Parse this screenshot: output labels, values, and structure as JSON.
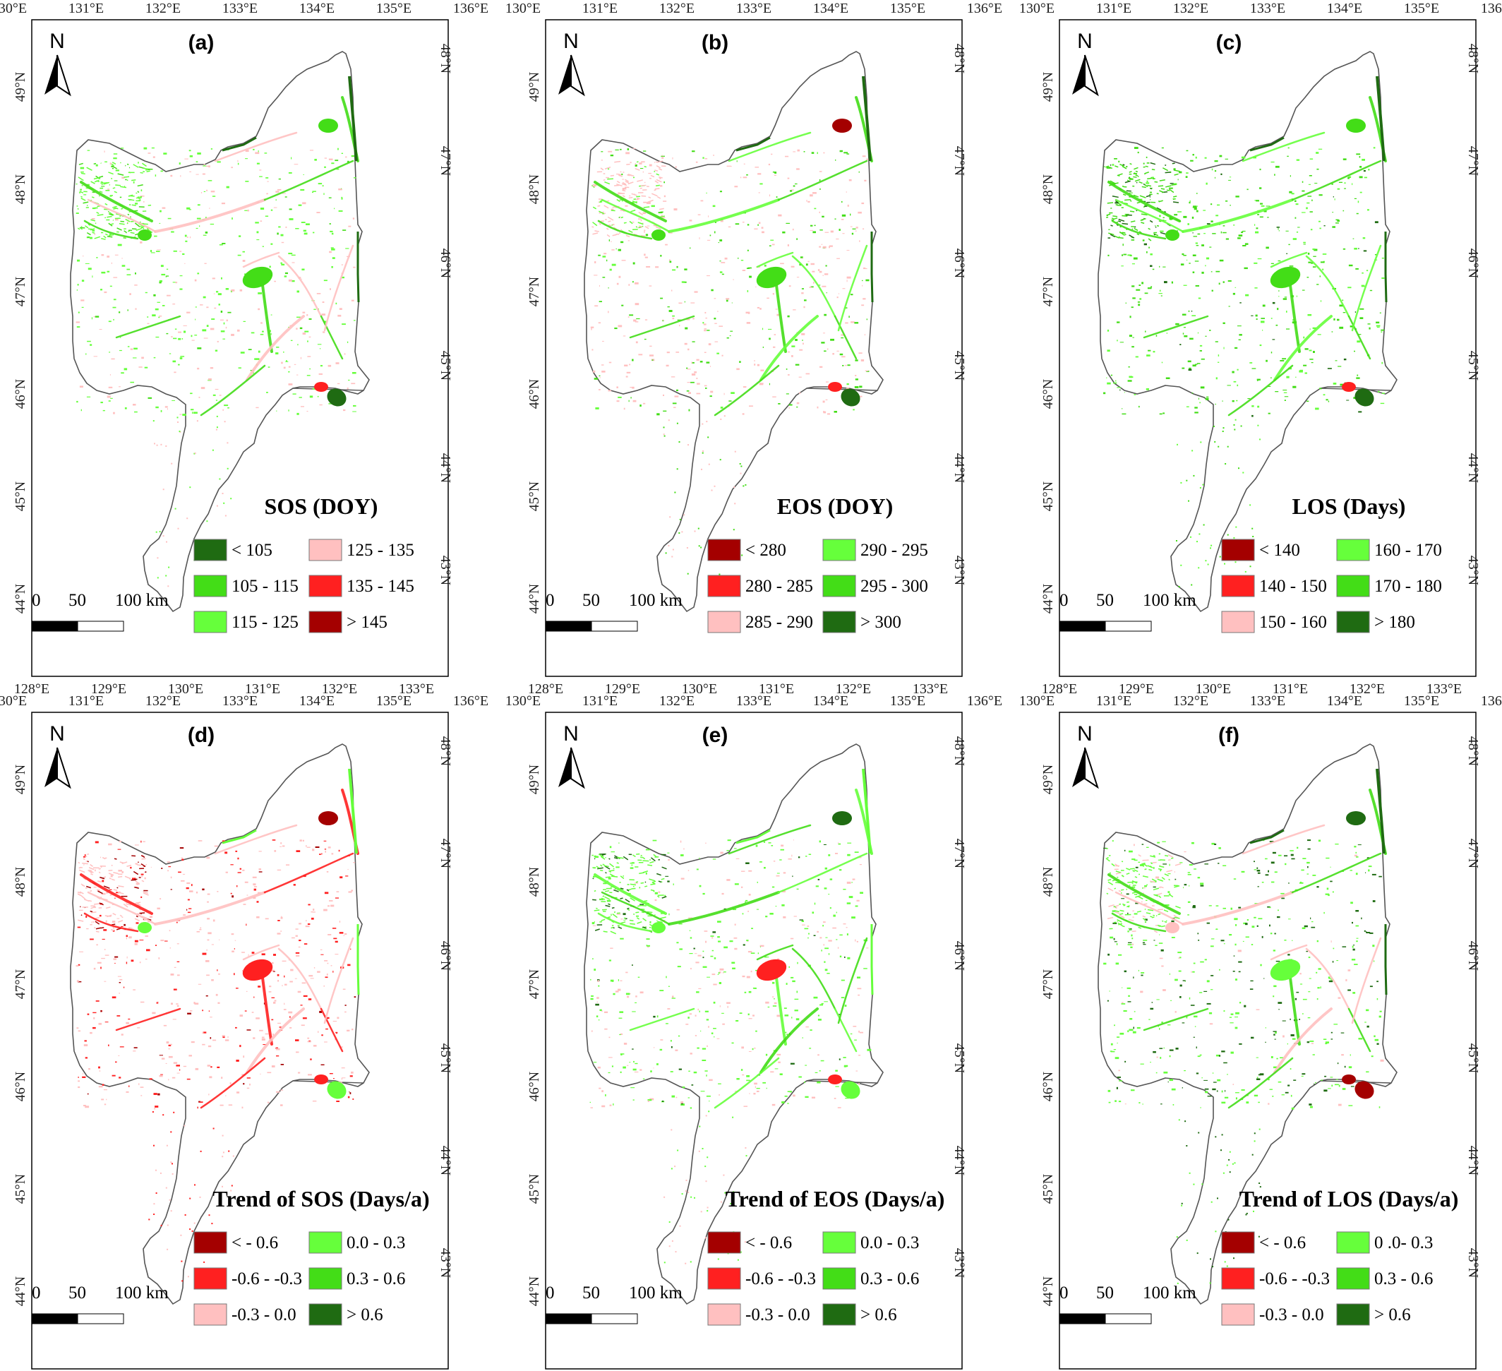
{
  "panels": [
    {
      "id": "a",
      "label": "(a)",
      "legend_title": "SOS (DOY)",
      "variable": "SOS",
      "legend": [
        {
          "label": "< 105",
          "color": "#1f6b12"
        },
        {
          "label": "105 - 115",
          "color": "#43dd17"
        },
        {
          "label": "115 - 125",
          "color": "#66ff3b"
        },
        {
          "label": "125 - 135",
          "color": "#ffc0c0"
        },
        {
          "label": "135 - 145",
          "color": "#ff2020"
        },
        {
          "label": "> 145",
          "color": "#a40000"
        }
      ]
    },
    {
      "id": "b",
      "label": "(b)",
      "legend_title": "EOS (DOY)",
      "variable": "EOS",
      "legend": [
        {
          "label": "< 280",
          "color": "#a40000"
        },
        {
          "label": "280 - 285",
          "color": "#ff2020"
        },
        {
          "label": "285 - 290",
          "color": "#ffc0c0"
        },
        {
          "label": "290 - 295",
          "color": "#66ff3b"
        },
        {
          "label": "295 - 300",
          "color": "#43dd17"
        },
        {
          "label": "> 300",
          "color": "#1f6b12"
        }
      ]
    },
    {
      "id": "c",
      "label": "(c)",
      "legend_title": "LOS (Days)",
      "variable": "LOS",
      "legend": [
        {
          "label": "< 140",
          "color": "#a40000"
        },
        {
          "label": "140 - 150",
          "color": "#ff2020"
        },
        {
          "label": "150 - 160",
          "color": "#ffc0c0"
        },
        {
          "label": "160 - 170",
          "color": "#66ff3b"
        },
        {
          "label": "170 - 180",
          "color": "#43dd17"
        },
        {
          "label": "> 180",
          "color": "#1f6b12"
        }
      ]
    },
    {
      "id": "d",
      "label": "(d)",
      "legend_title": "Trend of SOS (Days/a)",
      "variable": "SOS trend",
      "legend": [
        {
          "label": "< - 0.6",
          "color": "#a40000"
        },
        {
          "label": "-0.6 - -0.3",
          "color": "#ff2020"
        },
        {
          "label": "-0.3 - 0.0",
          "color": "#ffc0c0"
        },
        {
          "label": "0.0 - 0.3",
          "color": "#66ff3b"
        },
        {
          "label": "0.3 - 0.6",
          "color": "#43dd17"
        },
        {
          "label": "> 0.6",
          "color": "#1f6b12"
        }
      ]
    },
    {
      "id": "e",
      "label": "(e)",
      "legend_title": "Trend of EOS (Days/a)",
      "variable": "EOS trend",
      "legend": [
        {
          "label": "< - 0.6",
          "color": "#a40000"
        },
        {
          "label": "-0.6 - -0.3",
          "color": "#ff2020"
        },
        {
          "label": "-0.3 - 0.0",
          "color": "#ffc0c0"
        },
        {
          "label": "0.0 - 0.3",
          "color": "#66ff3b"
        },
        {
          "label": "0.3 - 0.6",
          "color": "#43dd17"
        },
        {
          "label": "> 0.6",
          "color": "#1f6b12"
        }
      ]
    },
    {
      "id": "f",
      "label": "(f)",
      "legend_title": "Trend of LOS (Days/a)",
      "variable": "LOS trend",
      "legend": [
        {
          "label": "< - 0.6",
          "color": "#a40000"
        },
        {
          "label": "-0.6 - -0.3",
          "color": "#ff2020"
        },
        {
          "label": "-0.3 - 0.0",
          "color": "#ffc0c0"
        },
        {
          "label": "0 .0- 0.3",
          "color": "#66ff3b"
        },
        {
          "label": "0.3 - 0.6",
          "color": "#43dd17"
        },
        {
          "label": "> 0.6",
          "color": "#1f6b12"
        }
      ]
    }
  ],
  "axes": {
    "top_ticks": [
      "130°E",
      "131°E",
      "132°E",
      "133°E",
      "134°E",
      "135°E",
      "136°E"
    ],
    "bottom_ticks": [
      "128°E",
      "129°E",
      "130°E",
      "131°E",
      "132°E",
      "133°E"
    ],
    "left_ticks": [
      "49°N",
      "48°N",
      "47°N",
      "46°N",
      "45°N",
      "44°N"
    ],
    "right_ticks": [
      "48°N",
      "47°N",
      "46°N",
      "45°N",
      "44°N",
      "43°N"
    ]
  },
  "north_arrow": {
    "label": "N",
    "icon": "north-arrow-icon"
  },
  "scale_bar": {
    "labels": [
      "0",
      "50",
      "100 km"
    ]
  },
  "colors": {
    "boundary": "#555555",
    "frame": "#000000"
  }
}
